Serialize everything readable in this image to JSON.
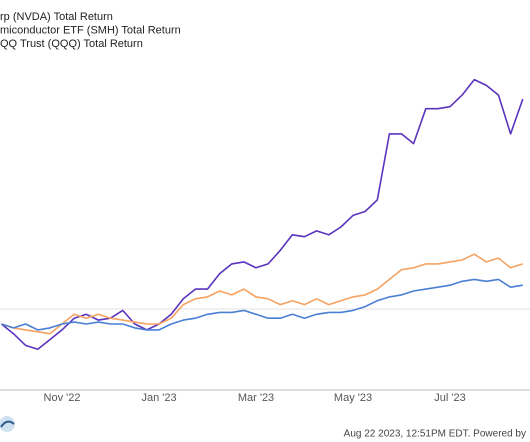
{
  "chart_data": {
    "type": "line",
    "legend_position": "top-left",
    "footer": "Aug 22 2023, 12:51PM EDT. Powered by",
    "categories": [
      null,
      null,
      null,
      null,
      null,
      "Nov '22",
      null,
      null,
      null,
      null,
      null,
      null,
      null,
      "Jan '23",
      null,
      null,
      null,
      null,
      null,
      null,
      null,
      "Mar '23",
      null,
      null,
      null,
      null,
      null,
      null,
      null,
      "May '23",
      null,
      null,
      null,
      null,
      null,
      null,
      null,
      "Jul '23",
      null,
      null,
      null,
      null,
      null,
      null
    ],
    "ylim": [
      -42,
      159
    ],
    "series": [
      {
        "name": "rp (NVDA) Total Return",
        "color": "#5a34be",
        "values": [
          -8,
          -13,
          -19,
          -21,
          -16,
          -11,
          -5,
          -3,
          -6,
          -5,
          -1,
          -8,
          -11,
          -8,
          -3,
          5,
          10,
          10,
          18,
          23,
          24,
          21,
          23,
          30,
          38,
          37,
          40,
          38,
          42,
          48,
          50,
          56,
          90,
          90,
          85,
          103,
          103,
          104,
          110,
          118,
          115,
          110,
          90,
          108
        ]
      },
      {
        "name": "miconductor ETF (SMH) Total Return",
        "color": "#f6a261",
        "values": [
          -8,
          -10,
          -11,
          -12,
          -13,
          -8,
          -3,
          -5,
          -3,
          -5,
          -6,
          -7,
          -8,
          -8,
          -5,
          2,
          5,
          6,
          9,
          7,
          10,
          6,
          5,
          2,
          4,
          2,
          5,
          2,
          4,
          6,
          7,
          10,
          15,
          20,
          21,
          23,
          23,
          24,
          25,
          28,
          24,
          26,
          21,
          23
        ]
      },
      {
        "name": "QQ Trust (QQQ) Total Return",
        "color": "#4a7fd4",
        "values": [
          -8,
          -10,
          -8,
          -11,
          -10,
          -8,
          -7,
          -8,
          -7,
          -8,
          -8,
          -10,
          -11,
          -11,
          -8,
          -6,
          -5,
          -3,
          -2,
          -2,
          -1,
          -3,
          -5,
          -5,
          -3,
          -5,
          -3,
          -2,
          -2,
          -1,
          1,
          4,
          6,
          7,
          9,
          10,
          11,
          12,
          14,
          15,
          14,
          15,
          11,
          12
        ]
      }
    ]
  }
}
